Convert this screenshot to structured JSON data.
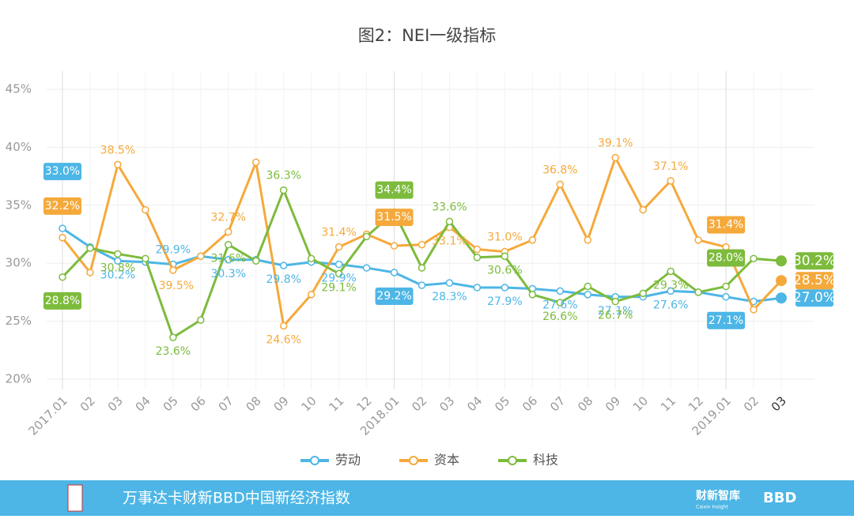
{
  "chart_data": {
    "type": "line",
    "title": "图2：NEI一级指标",
    "categories": [
      "2017.01",
      "02",
      "03",
      "04",
      "05",
      "06",
      "07",
      "08",
      "09",
      "10",
      "11",
      "12",
      "2018.01",
      "02",
      "03",
      "04",
      "05",
      "06",
      "07",
      "08",
      "09",
      "10",
      "11",
      "12",
      "2019.01",
      "02",
      "03"
    ],
    "ylim": [
      20,
      45
    ],
    "yticks": [
      {
        "value": 20,
        "label": "20%"
      },
      {
        "value": 25,
        "label": "25%"
      },
      {
        "value": 30,
        "label": "30%"
      },
      {
        "value": 35,
        "label": "35%"
      },
      {
        "value": 40,
        "label": "40%"
      },
      {
        "value": 45,
        "label": "45%"
      }
    ],
    "grid": true,
    "legend": "bottom",
    "series": [
      {
        "name": "劳动",
        "color": "#4db6e6",
        "values": [
          33.0,
          31.4,
          30.2,
          30.1,
          29.9,
          30.6,
          30.3,
          30.3,
          29.8,
          30.1,
          29.9,
          29.6,
          29.2,
          28.1,
          28.3,
          27.9,
          27.9,
          27.8,
          27.6,
          27.3,
          27.1,
          27.1,
          27.6,
          27.5,
          27.1,
          26.7,
          27.0
        ],
        "value_labels": [
          "33.0%",
          null,
          "30.2%",
          null,
          "29.9%",
          null,
          "30.3%",
          null,
          "29.8%",
          null,
          "29.9%",
          null,
          "29.2%",
          null,
          "28.3%",
          null,
          "27.9%",
          null,
          "27.6%",
          null,
          "27.1%",
          null,
          "27.6%",
          null,
          "27.1%",
          null,
          "27.0%"
        ]
      },
      {
        "name": "资本",
        "color": "#f5a93b",
        "values": [
          32.2,
          29.2,
          38.5,
          34.6,
          29.4,
          30.6,
          32.7,
          38.7,
          24.6,
          27.3,
          31.4,
          32.5,
          31.5,
          31.6,
          33.1,
          31.2,
          31.0,
          32.0,
          36.8,
          32.0,
          39.1,
          34.6,
          37.1,
          32.0,
          31.4,
          26.0,
          28.5
        ],
        "value_labels": [
          "32.2%",
          null,
          "38.5%",
          null,
          null,
          null,
          "32.7%",
          null,
          "24.6%",
          null,
          "31.4%",
          null,
          "31.5%",
          null,
          "33.1%",
          null,
          "31.0%",
          null,
          "36.8%",
          null,
          "39.1%",
          null,
          "37.1%",
          null,
          "31.4%",
          null,
          "28.5%"
        ]
      },
      {
        "name": "科技",
        "color": "#7dbb3c",
        "values": [
          28.8,
          31.3,
          30.8,
          30.4,
          23.6,
          25.1,
          31.6,
          30.2,
          36.3,
          30.4,
          29.1,
          32.3,
          34.4,
          29.6,
          33.6,
          30.5,
          30.6,
          27.3,
          26.6,
          28.0,
          26.7,
          27.4,
          29.3,
          27.5,
          28.0,
          30.4,
          30.2
        ],
        "value_labels": [
          "28.8%",
          null,
          "30.8%",
          null,
          "23.6%",
          null,
          "31.6%",
          null,
          "36.3%",
          null,
          "29.1%",
          null,
          "34.4%",
          null,
          "33.6%",
          null,
          "30.6%",
          null,
          "26.6%",
          null,
          "26.7%",
          null,
          "29.3%",
          null,
          "28.0%",
          null,
          "30.2%"
        ]
      }
    ],
    "annotations": [
      "39.5%"
    ]
  },
  "footer": {
    "title": "万事达卡财新BBD中国新经济指数",
    "brand": "财新智库",
    "brand_sub": "Caixin Insight",
    "brand2": "BBD"
  }
}
